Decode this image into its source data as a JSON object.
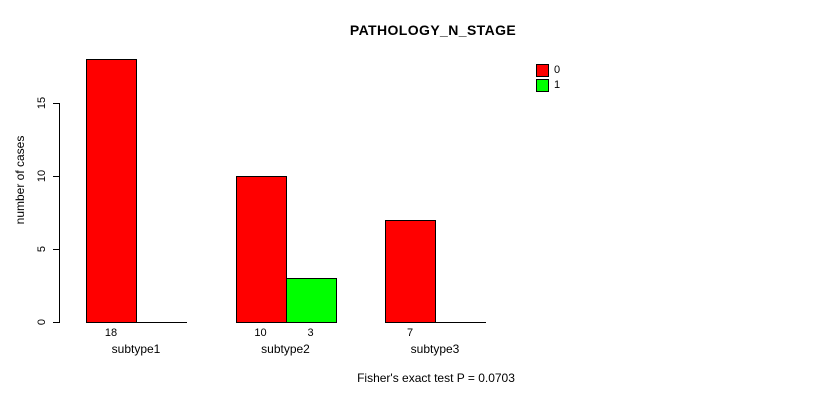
{
  "chart_data": {
    "type": "bar",
    "title": "PATHOLOGY_N_STAGE",
    "ylabel": "number of cases",
    "xlabel": "",
    "categories": [
      "subtype1",
      "subtype2",
      "subtype3"
    ],
    "series": [
      {
        "name": "0",
        "color": "#FF0000",
        "values": [
          18,
          10,
          7
        ]
      },
      {
        "name": "1",
        "color": "#00FF00",
        "values": [
          0,
          3,
          0
        ]
      }
    ],
    "bar_value_labels": [
      [
        "18",
        null
      ],
      [
        "10",
        "3"
      ],
      [
        "7",
        null
      ]
    ],
    "yticks": [
      0,
      5,
      10,
      15
    ],
    "ylim": [
      0,
      18
    ],
    "grid": false,
    "legend_position": "top-right",
    "annotation": "Fisher's exact test P = 0.0703"
  },
  "colors": {
    "background": "#FFFFFF",
    "axis": "#000000",
    "text": "#000000",
    "series_0": "#FF0000",
    "series_1": "#00FF00"
  }
}
